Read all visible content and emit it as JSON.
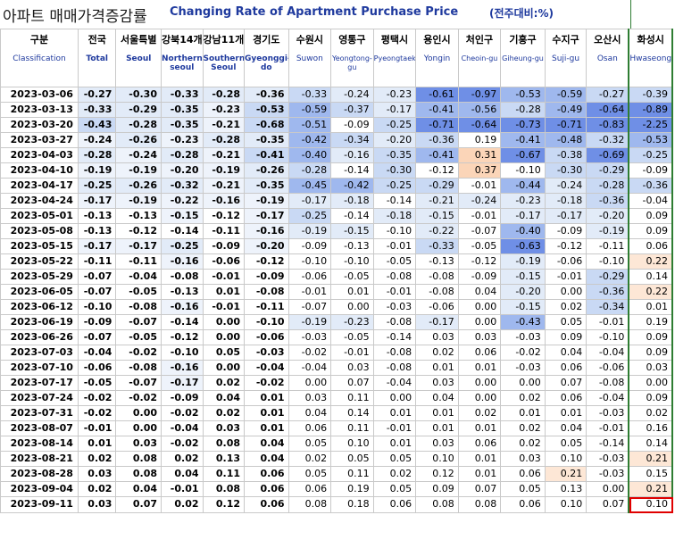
{
  "title": {
    "korean": "아파트 매매가격증감률",
    "english": "Changing Rate of Apartment Purchase Price",
    "unit": "(전주대비:%)"
  },
  "columns": [
    {
      "ko": "구분",
      "en": "Classification"
    },
    {
      "ko": "전국",
      "en": "Total"
    },
    {
      "ko": "서울특별",
      "en": "Seoul"
    },
    {
      "ko": "강북14개",
      "en": "Northern seoul"
    },
    {
      "ko": "강남11개",
      "en": "Southern Seoul"
    },
    {
      "ko": "경기도",
      "en": "Gyeonggi-do"
    },
    {
      "ko": "수원시",
      "en": "Suwon"
    },
    {
      "ko": "영통구",
      "en": "Yeongtong-gu"
    },
    {
      "ko": "평택시",
      "en": "Pyeongtaek"
    },
    {
      "ko": "용인시",
      "en": "Yongin"
    },
    {
      "ko": "처인구",
      "en": "Cheoin-gu"
    },
    {
      "ko": "기흥구",
      "en": "Giheung-gu"
    },
    {
      "ko": "수지구",
      "en": "Suji-gu"
    },
    {
      "ko": "오산시",
      "en": "Osan"
    },
    {
      "ko": "화성시",
      "en": "Hwaseong"
    }
  ],
  "colors": {
    "blue_strong": "#6f8fe6",
    "blue_mid": "#9fb8ee",
    "blue_light": "#c9d9f4",
    "blue_pale": "#e2ebf8",
    "blue_very_pale": "#eef3fb",
    "orange_light": "#fbd5b8",
    "orange_pale": "#fde7d6",
    "none": "#ffffff",
    "highlight_border": "#e00000",
    "hwaseong_border": "#2e7d32"
  },
  "rows": [
    {
      "date": "2023-03-06",
      "values": [
        "-0.27",
        "-0.30",
        "-0.33",
        "-0.28",
        "-0.36",
        "-0.33",
        "-0.24",
        "-0.23",
        "-0.61",
        "-0.97",
        "-0.53",
        "-0.59",
        "-0.27",
        "-0.39"
      ]
    },
    {
      "date": "2023-03-13",
      "values": [
        "-0.33",
        "-0.29",
        "-0.35",
        "-0.23",
        "-0.53",
        "-0.59",
        "-0.37",
        "-0.17",
        "-0.41",
        "-0.56",
        "-0.28",
        "-0.49",
        "-0.64",
        "-0.89"
      ]
    },
    {
      "date": "2023-03-20",
      "values": [
        "-0.43",
        "-0.28",
        "-0.35",
        "-0.21",
        "-0.68",
        "-0.51",
        "-0.09",
        "-0.25",
        "-0.71",
        "-0.64",
        "-0.73",
        "-0.71",
        "-0.83",
        "-2.25"
      ]
    },
    {
      "date": "2023-03-27",
      "values": [
        "-0.24",
        "-0.26",
        "-0.23",
        "-0.28",
        "-0.35",
        "-0.42",
        "-0.34",
        "-0.20",
        "-0.36",
        "0.19",
        "-0.41",
        "-0.48",
        "-0.32",
        "-0.53"
      ]
    },
    {
      "date": "2023-04-03",
      "values": [
        "-0.28",
        "-0.24",
        "-0.28",
        "-0.21",
        "-0.41",
        "-0.40",
        "-0.16",
        "-0.35",
        "-0.41",
        "0.31",
        "-0.67",
        "-0.38",
        "-0.69",
        "-0.25"
      ]
    },
    {
      "date": "2023-04-10",
      "values": [
        "-0.19",
        "-0.19",
        "-0.20",
        "-0.19",
        "-0.26",
        "-0.28",
        "-0.14",
        "-0.30",
        "-0.12",
        "0.37",
        "-0.10",
        "-0.30",
        "-0.29",
        "-0.09"
      ]
    },
    {
      "date": "2023-04-17",
      "values": [
        "-0.25",
        "-0.26",
        "-0.32",
        "-0.21",
        "-0.35",
        "-0.45",
        "-0.42",
        "-0.25",
        "-0.29",
        "-0.01",
        "-0.44",
        "-0.24",
        "-0.28",
        "-0.36"
      ]
    },
    {
      "date": "2023-04-24",
      "values": [
        "-0.17",
        "-0.19",
        "-0.22",
        "-0.16",
        "-0.19",
        "-0.17",
        "-0.18",
        "-0.14",
        "-0.21",
        "-0.24",
        "-0.23",
        "-0.18",
        "-0.36",
        "-0.04"
      ]
    },
    {
      "date": "2023-05-01",
      "values": [
        "-0.13",
        "-0.13",
        "-0.15",
        "-0.12",
        "-0.17",
        "-0.25",
        "-0.14",
        "-0.18",
        "-0.15",
        "-0.01",
        "-0.17",
        "-0.17",
        "-0.20",
        "0.09"
      ]
    },
    {
      "date": "2023-05-08",
      "values": [
        "-0.13",
        "-0.12",
        "-0.14",
        "-0.11",
        "-0.16",
        "-0.19",
        "-0.15",
        "-0.10",
        "-0.22",
        "-0.07",
        "-0.40",
        "-0.09",
        "-0.19",
        "0.09"
      ]
    },
    {
      "date": "2023-05-15",
      "values": [
        "-0.17",
        "-0.17",
        "-0.25",
        "-0.09",
        "-0.20",
        "-0.09",
        "-0.13",
        "-0.01",
        "-0.33",
        "-0.05",
        "-0.63",
        "-0.12",
        "-0.11",
        "0.06"
      ]
    },
    {
      "date": "2023-05-22",
      "values": [
        "-0.11",
        "-0.11",
        "-0.16",
        "-0.06",
        "-0.12",
        "-0.10",
        "-0.10",
        "-0.05",
        "-0.13",
        "-0.12",
        "-0.19",
        "-0.06",
        "-0.10",
        "0.22"
      ]
    },
    {
      "date": "2023-05-29",
      "values": [
        "-0.07",
        "-0.04",
        "-0.08",
        "-0.01",
        "-0.09",
        "-0.06",
        "-0.05",
        "-0.08",
        "-0.08",
        "-0.09",
        "-0.15",
        "-0.01",
        "-0.29",
        "0.14"
      ]
    },
    {
      "date": "2023-06-05",
      "values": [
        "-0.07",
        "-0.05",
        "-0.13",
        "0.01",
        "-0.08",
        "-0.01",
        "0.01",
        "-0.01",
        "-0.08",
        "0.04",
        "-0.20",
        "0.00",
        "-0.36",
        "0.22"
      ]
    },
    {
      "date": "2023-06-12",
      "values": [
        "-0.10",
        "-0.08",
        "-0.16",
        "-0.01",
        "-0.11",
        "-0.07",
        "0.00",
        "-0.03",
        "-0.06",
        "0.00",
        "-0.15",
        "0.02",
        "-0.34",
        "0.01"
      ]
    },
    {
      "date": "2023-06-19",
      "values": [
        "-0.09",
        "-0.07",
        "-0.14",
        "0.00",
        "-0.10",
        "-0.19",
        "-0.23",
        "-0.08",
        "-0.17",
        "0.00",
        "-0.43",
        "0.05",
        "-0.01",
        "0.19"
      ]
    },
    {
      "date": "2023-06-26",
      "values": [
        "-0.07",
        "-0.05",
        "-0.12",
        "0.00",
        "-0.06",
        "-0.03",
        "-0.05",
        "-0.14",
        "0.03",
        "0.03",
        "-0.03",
        "0.09",
        "-0.10",
        "0.09"
      ]
    },
    {
      "date": "2023-07-03",
      "values": [
        "-0.04",
        "-0.02",
        "-0.10",
        "0.05",
        "-0.03",
        "-0.02",
        "-0.01",
        "-0.08",
        "0.02",
        "0.06",
        "-0.02",
        "0.04",
        "-0.04",
        "0.09"
      ]
    },
    {
      "date": "2023-07-10",
      "values": [
        "-0.06",
        "-0.08",
        "-0.16",
        "0.00",
        "-0.04",
        "-0.04",
        "0.03",
        "-0.08",
        "0.01",
        "0.01",
        "-0.03",
        "0.06",
        "-0.06",
        "0.03"
      ]
    },
    {
      "date": "2023-07-17",
      "values": [
        "-0.05",
        "-0.07",
        "-0.17",
        "0.02",
        "-0.02",
        "0.00",
        "0.07",
        "-0.04",
        "0.03",
        "0.00",
        "0.00",
        "0.07",
        "-0.08",
        "0.00"
      ]
    },
    {
      "date": "2023-07-24",
      "values": [
        "-0.02",
        "-0.02",
        "-0.09",
        "0.04",
        "0.01",
        "0.03",
        "0.11",
        "0.00",
        "0.04",
        "0.00",
        "0.02",
        "0.06",
        "-0.04",
        "0.09"
      ]
    },
    {
      "date": "2023-07-31",
      "values": [
        "-0.02",
        "0.00",
        "-0.02",
        "0.02",
        "0.01",
        "0.04",
        "0.14",
        "0.01",
        "0.01",
        "0.02",
        "0.01",
        "0.01",
        "-0.03",
        "0.02"
      ]
    },
    {
      "date": "2023-08-07",
      "values": [
        "-0.01",
        "0.00",
        "-0.04",
        "0.03",
        "0.01",
        "0.06",
        "0.11",
        "-0.01",
        "0.01",
        "0.01",
        "0.02",
        "0.04",
        "-0.01",
        "0.16"
      ]
    },
    {
      "date": "2023-08-14",
      "values": [
        "0.01",
        "0.03",
        "-0.02",
        "0.08",
        "0.04",
        "0.05",
        "0.10",
        "0.01",
        "0.03",
        "0.06",
        "0.02",
        "0.05",
        "-0.14",
        "0.14"
      ]
    },
    {
      "date": "2023-08-21",
      "values": [
        "0.02",
        "0.08",
        "0.02",
        "0.13",
        "0.04",
        "0.02",
        "0.05",
        "0.05",
        "0.10",
        "0.01",
        "0.03",
        "0.10",
        "-0.03",
        "0.21"
      ]
    },
    {
      "date": "2023-08-28",
      "values": [
        "0.03",
        "0.08",
        "0.04",
        "0.11",
        "0.06",
        "0.05",
        "0.11",
        "0.02",
        "0.12",
        "0.01",
        "0.06",
        "0.21",
        "-0.03",
        "0.15"
      ]
    },
    {
      "date": "2023-09-04",
      "values": [
        "0.02",
        "0.04",
        "-0.01",
        "0.08",
        "0.06",
        "0.06",
        "0.19",
        "0.05",
        "0.09",
        "0.07",
        "0.05",
        "0.13",
        "0.00",
        "0.21"
      ]
    },
    {
      "date": "2023-09-11",
      "values": [
        "0.03",
        "0.07",
        "0.02",
        "0.12",
        "0.06",
        "0.08",
        "0.18",
        "0.06",
        "0.08",
        "0.08",
        "0.06",
        "0.10",
        "0.07",
        "0.10"
      ]
    }
  ],
  "highlighted_cell": {
    "date": "2023-09-11",
    "column": "Hwaseong",
    "value": "0.10"
  }
}
